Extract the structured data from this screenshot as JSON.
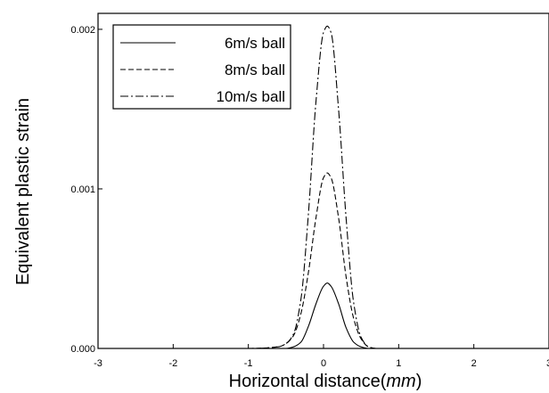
{
  "chart_data": {
    "type": "line",
    "xlabel": "Horizontal distance(",
    "xlabel_unit": "mm",
    "xlabel_close": ")",
    "ylabel": "Equivalent plastic strain",
    "xlim": [
      -3,
      3
    ],
    "ylim": [
      0,
      0.0021
    ],
    "x_ticks": [
      -3,
      -2,
      -1,
      0,
      1,
      2,
      3
    ],
    "x_tick_labels": [
      "-3",
      "-2",
      "-1",
      "0",
      "1",
      "2",
      "3"
    ],
    "y_ticks": [
      0,
      0.001,
      0.002
    ],
    "y_tick_labels": [
      "0.000",
      "0.001",
      "0.002"
    ],
    "grid": false,
    "legend_position": "top-left",
    "x": [
      -2.5,
      -1.0,
      -0.6,
      -0.5,
      -0.4,
      -0.3,
      -0.2,
      -0.1,
      0.0,
      0.05,
      0.1,
      0.2,
      0.3,
      0.4,
      0.5,
      0.6,
      0.7,
      1.0,
      2.5
    ],
    "series": [
      {
        "name": "6m/s ball",
        "dash": "solid",
        "values": [
          0,
          0,
          0,
          0,
          1e-05,
          4e-05,
          0.00014,
          0.00028,
          0.00039,
          0.00041,
          0.00039,
          0.00028,
          0.00013,
          4e-05,
          1e-05,
          0,
          0,
          0,
          0
        ]
      },
      {
        "name": "8m/s ball",
        "dash": "dashed",
        "values": [
          0,
          0,
          1e-05,
          3e-05,
          8e-05,
          0.00022,
          0.00048,
          0.00082,
          0.00107,
          0.0011,
          0.00107,
          0.00082,
          0.00045,
          0.00019,
          6e-05,
          1e-05,
          0,
          0,
          0
        ]
      },
      {
        "name": "10m/s ball",
        "dash": "dash-dot",
        "values": [
          0,
          0,
          1e-05,
          3e-05,
          9e-05,
          0.00031,
          0.00085,
          0.00155,
          0.00198,
          0.00202,
          0.00198,
          0.0015,
          0.00082,
          0.00029,
          7e-05,
          1e-05,
          0,
          0,
          0
        ]
      }
    ]
  }
}
